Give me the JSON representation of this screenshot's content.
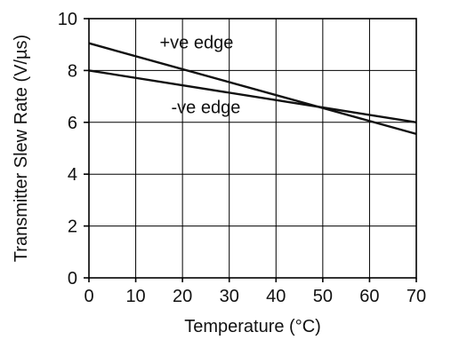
{
  "chart_data": {
    "type": "line",
    "title": "",
    "xlabel": "Temperature (°C)",
    "ylabel": "Transmitter Slew Rate (V/µs)",
    "xlim": [
      0,
      70
    ],
    "ylim": [
      0,
      10
    ],
    "x_ticks": [
      0,
      10,
      20,
      30,
      40,
      50,
      60,
      70
    ],
    "y_ticks": [
      0,
      2,
      4,
      6,
      8,
      10
    ],
    "grid": true,
    "legend": "none",
    "series": [
      {
        "name": "+ve edge",
        "x": [
          0,
          70
        ],
        "y": [
          9.05,
          5.55
        ]
      },
      {
        "name": "-ve edge",
        "x": [
          0,
          70
        ],
        "y": [
          8.0,
          6.0
        ]
      }
    ],
    "annotations": [
      {
        "text": "+ve edge",
        "series": 0,
        "x": 23,
        "y": 9.1
      },
      {
        "text": "-ve edge",
        "series": 1,
        "x": 25,
        "y": 6.6
      }
    ],
    "colors": {
      "line": "#111111",
      "grid": "#000000",
      "background": "#ffffff"
    }
  }
}
